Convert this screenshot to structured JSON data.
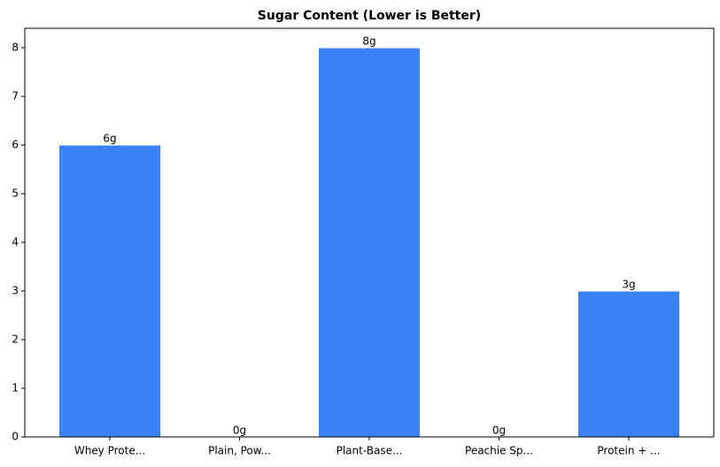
{
  "chart_data": {
    "type": "bar",
    "title": "Sugar Content (Lower is Better)",
    "categories": [
      "Whey Prote...",
      "Plain, Pow...",
      "Plant-Base...",
      "Peachie Sp...",
      "Protein + ..."
    ],
    "values": [
      6,
      0,
      8,
      0,
      3
    ],
    "value_labels": [
      "6g",
      "0g",
      "8g",
      "0g",
      "3g"
    ],
    "color": "#3b82f6",
    "ylim": [
      0,
      8.4
    ],
    "yticks": [
      0,
      1,
      2,
      3,
      4,
      5,
      6,
      7,
      8
    ]
  }
}
